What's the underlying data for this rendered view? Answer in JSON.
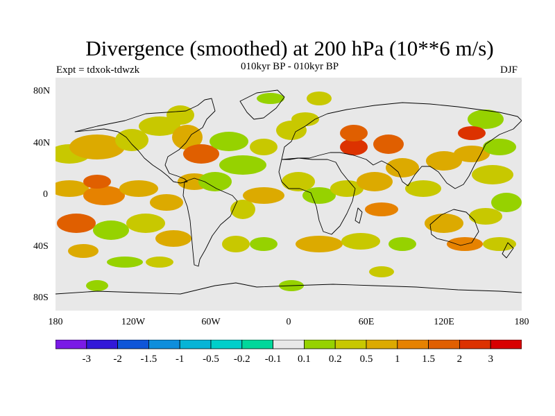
{
  "header": {
    "title": "Divergence (smoothed) at 200 hPa (10**6 m/s)",
    "subtitle": "010kyr BP - 010kyr BP",
    "left_label": "Expt = tdxok-tdwzk",
    "right_label": "DJF"
  },
  "axes": {
    "y_ticks": [
      "80N",
      "40N",
      "0",
      "40S",
      "80S"
    ],
    "x_ticks": [
      "180",
      "120W",
      "60W",
      "0",
      "60E",
      "120E",
      "180"
    ]
  },
  "colorbar": {
    "colors": [
      "#7a1ae6",
      "#3218d8",
      "#0f55d8",
      "#0f8edc",
      "#06b4d6",
      "#00cfca",
      "#00d79b",
      "#e8e8e8",
      "#96d200",
      "#c8c800",
      "#dcaa00",
      "#e68200",
      "#e05f00",
      "#dc3200",
      "#d80000"
    ],
    "labels": [
      "-3",
      "-2",
      "-1.5",
      "-1",
      "-0.5",
      "-0.2",
      "-0.1",
      "0.1",
      "0.2",
      "0.5",
      "1",
      "1.5",
      "2",
      "3"
    ]
  },
  "map_style": {
    "background": "#e8e8e8",
    "coastline_color": "#000000"
  }
}
